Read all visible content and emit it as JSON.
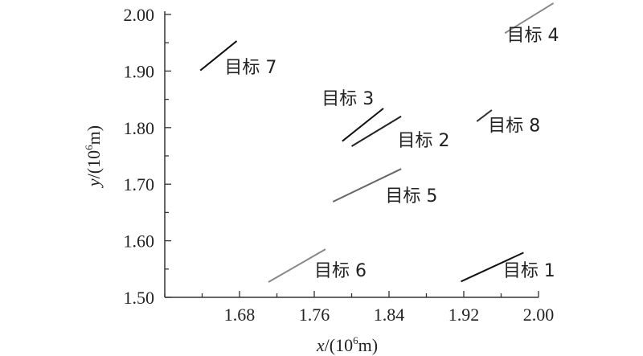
{
  "chart_data": {
    "type": "line",
    "title": "",
    "xlabel": {
      "var": "x",
      "pre": "/(10",
      "exp": "6",
      "post": "m)"
    },
    "ylabel": {
      "var": "y",
      "pre": "/(10",
      "exp": "6",
      "post": "m)"
    },
    "xlim": [
      1.6,
      2.0
    ],
    "ylim": [
      1.5,
      2.0
    ],
    "xticks": [
      1.68,
      1.76,
      1.84,
      1.92,
      2.0
    ],
    "xtick_labels": [
      "1.68",
      "1.76",
      "1.84",
      "1.92",
      "2.00"
    ],
    "yticks": [
      1.5,
      1.6,
      1.7,
      1.8,
      1.9,
      2.0
    ],
    "ytick_labels": [
      "1.50",
      "1.60",
      "1.70",
      "1.80",
      "1.90",
      "2.00"
    ],
    "grid": false,
    "legend": "none",
    "series": [
      {
        "name": "目标 1",
        "color": "#111111",
        "x": [
          1.917,
          1.984
        ],
        "y": [
          1.528,
          1.579
        ],
        "label_at": [
          1.962,
          1.537
        ]
      },
      {
        "name": "目标 2",
        "color": "#222222",
        "x": [
          1.8,
          1.853
        ],
        "y": [
          1.767,
          1.82
        ],
        "label_at": [
          1.849,
          1.767
        ]
      },
      {
        "name": "目标 3",
        "color": "#111111",
        "x": [
          1.79,
          1.834
        ],
        "y": [
          1.776,
          1.834
        ],
        "label_at": [
          1.768,
          1.841
        ]
      },
      {
        "name": "目标 4",
        "color": "#888888",
        "x": [
          1.964,
          2.016
        ],
        "y": [
          1.967,
          2.02
        ],
        "label_at": [
          1.966,
          1.953
        ]
      },
      {
        "name": "目标 5",
        "color": "#666666",
        "x": [
          1.78,
          1.853
        ],
        "y": [
          1.669,
          1.727
        ],
        "label_at": [
          1.836,
          1.669
        ]
      },
      {
        "name": "目标 6",
        "color": "#888888",
        "x": [
          1.711,
          1.772
        ],
        "y": [
          1.527,
          1.585
        ],
        "label_at": [
          1.76,
          1.537
        ]
      },
      {
        "name": "目标 7",
        "color": "#111111",
        "x": [
          1.638,
          1.677
        ],
        "y": [
          1.901,
          1.953
        ],
        "label_at": [
          1.664,
          1.896
        ]
      },
      {
        "name": "目标 8",
        "color": "#333333",
        "x": [
          1.934,
          1.95
        ],
        "y": [
          1.811,
          1.831
        ],
        "label_at": [
          1.946,
          1.793
        ]
      }
    ]
  }
}
